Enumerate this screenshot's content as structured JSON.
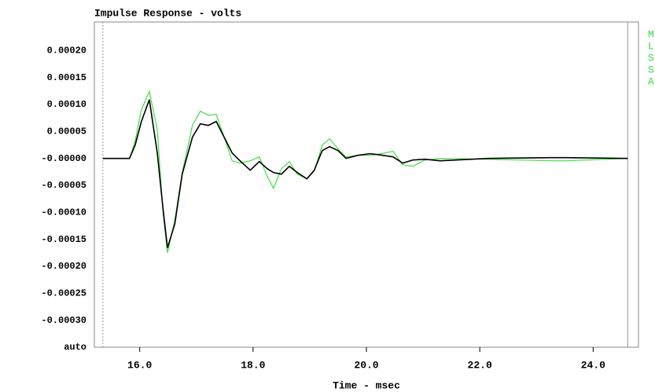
{
  "chart_data": {
    "type": "line",
    "title": "Impulse Response - volts",
    "x_label": "Time - msec",
    "side_labels": [
      "M",
      "L",
      "S",
      "S",
      "A"
    ],
    "xlim": [
      15.2,
      24.8
    ],
    "xticks": [
      {
        "value": 16,
        "label": "16.0"
      },
      {
        "value": 18,
        "label": "18.0"
      },
      {
        "value": 20,
        "label": "20.0"
      },
      {
        "value": 22,
        "label": "22.0"
      },
      {
        "value": 24,
        "label": "24.0"
      }
    ],
    "ylim": [
      -0.00035,
      0.00025
    ],
    "yticks": [
      {
        "value": 0.0002,
        "label": "0.00020"
      },
      {
        "value": 0.00015,
        "label": "0.00015"
      },
      {
        "value": 0.0001,
        "label": "0.00010"
      },
      {
        "value": 5e-05,
        "label": "0.00005"
      },
      {
        "value": 0,
        "label": "-0.00000"
      },
      {
        "value": -5e-05,
        "label": "-0.00005"
      },
      {
        "value": -0.0001,
        "label": "-0.00010"
      },
      {
        "value": -0.00015,
        "label": "-0.00015"
      },
      {
        "value": -0.0002,
        "label": "-0.00020"
      },
      {
        "value": -0.00025,
        "label": "-0.00025"
      },
      {
        "value": -0.0003,
        "label": "-0.00030"
      },
      {
        "value": -0.00035,
        "label": "auto"
      }
    ],
    "markers": [
      15.35,
      24.61
    ],
    "x": [
      15.35,
      15.82,
      15.92,
      16.03,
      16.17,
      16.31,
      16.41,
      16.49,
      16.62,
      16.75,
      16.93,
      17.07,
      17.21,
      17.35,
      17.49,
      17.63,
      17.77,
      17.95,
      18.11,
      18.25,
      18.36,
      18.5,
      18.64,
      18.78,
      18.95,
      19.08,
      19.22,
      19.35,
      19.5,
      19.64,
      19.85,
      20.06,
      20.19,
      20.47,
      20.64,
      20.82,
      21.03,
      21.3,
      22.14,
      23.25,
      23.52,
      24.61
    ],
    "series": [
      {
        "color": "#44dd44",
        "values": [
          0,
          0,
          3.21e-05,
          9.04e-05,
          0.000124,
          5.39e-05,
          -9.91e-05,
          -0.000175,
          -0.000114,
          -2.62e-05,
          6.12e-05,
          8.75e-05,
          8.02e-05,
          8.16e-05,
          3.94e-05,
          -4.4e-06,
          -8.7e-06,
          -4.4e-06,
          2.9e-06,
          -3.35e-05,
          -5.54e-05,
          -1.9e-05,
          -5.8e-06,
          -2.92e-05,
          -3.79e-05,
          -2.33e-05,
          2.48e-05,
          3.64e-05,
          1.75e-05,
          2.9e-06,
          5.8e-06,
          5.8e-06,
          7.3e-06,
          1.31e-05,
          -1.17e-05,
          -1.46e-05,
          -2.9e-06,
          0,
          -1.5e-06,
          -4.4e-06,
          -4.4e-06,
          0
        ]
      },
      {
        "color": "#000000",
        "values": [
          0,
          0,
          2.48e-05,
          6.85e-05,
          0.000109,
          1.02e-05,
          -9.18e-05,
          -0.000166,
          -0.000121,
          -2.92e-05,
          3.94e-05,
          6.41e-05,
          6.12e-05,
          6.85e-05,
          3.94e-05,
          1.02e-05,
          -4.4e-06,
          -2.19e-05,
          -5.8e-06,
          -1.9e-05,
          -2.62e-05,
          -2.92e-05,
          -1.46e-05,
          -2.62e-05,
          -3.79e-05,
          -2.19e-05,
          1.46e-05,
          2.19e-05,
          1.46e-05,
          0,
          5.8e-06,
          8.8e-06,
          7.3e-06,
          2.9e-06,
          -8.7e-06,
          -2.9e-06,
          -1.5e-06,
          -4.4e-06,
          0,
          1.5e-06,
          1.5e-06,
          0
        ]
      }
    ]
  }
}
